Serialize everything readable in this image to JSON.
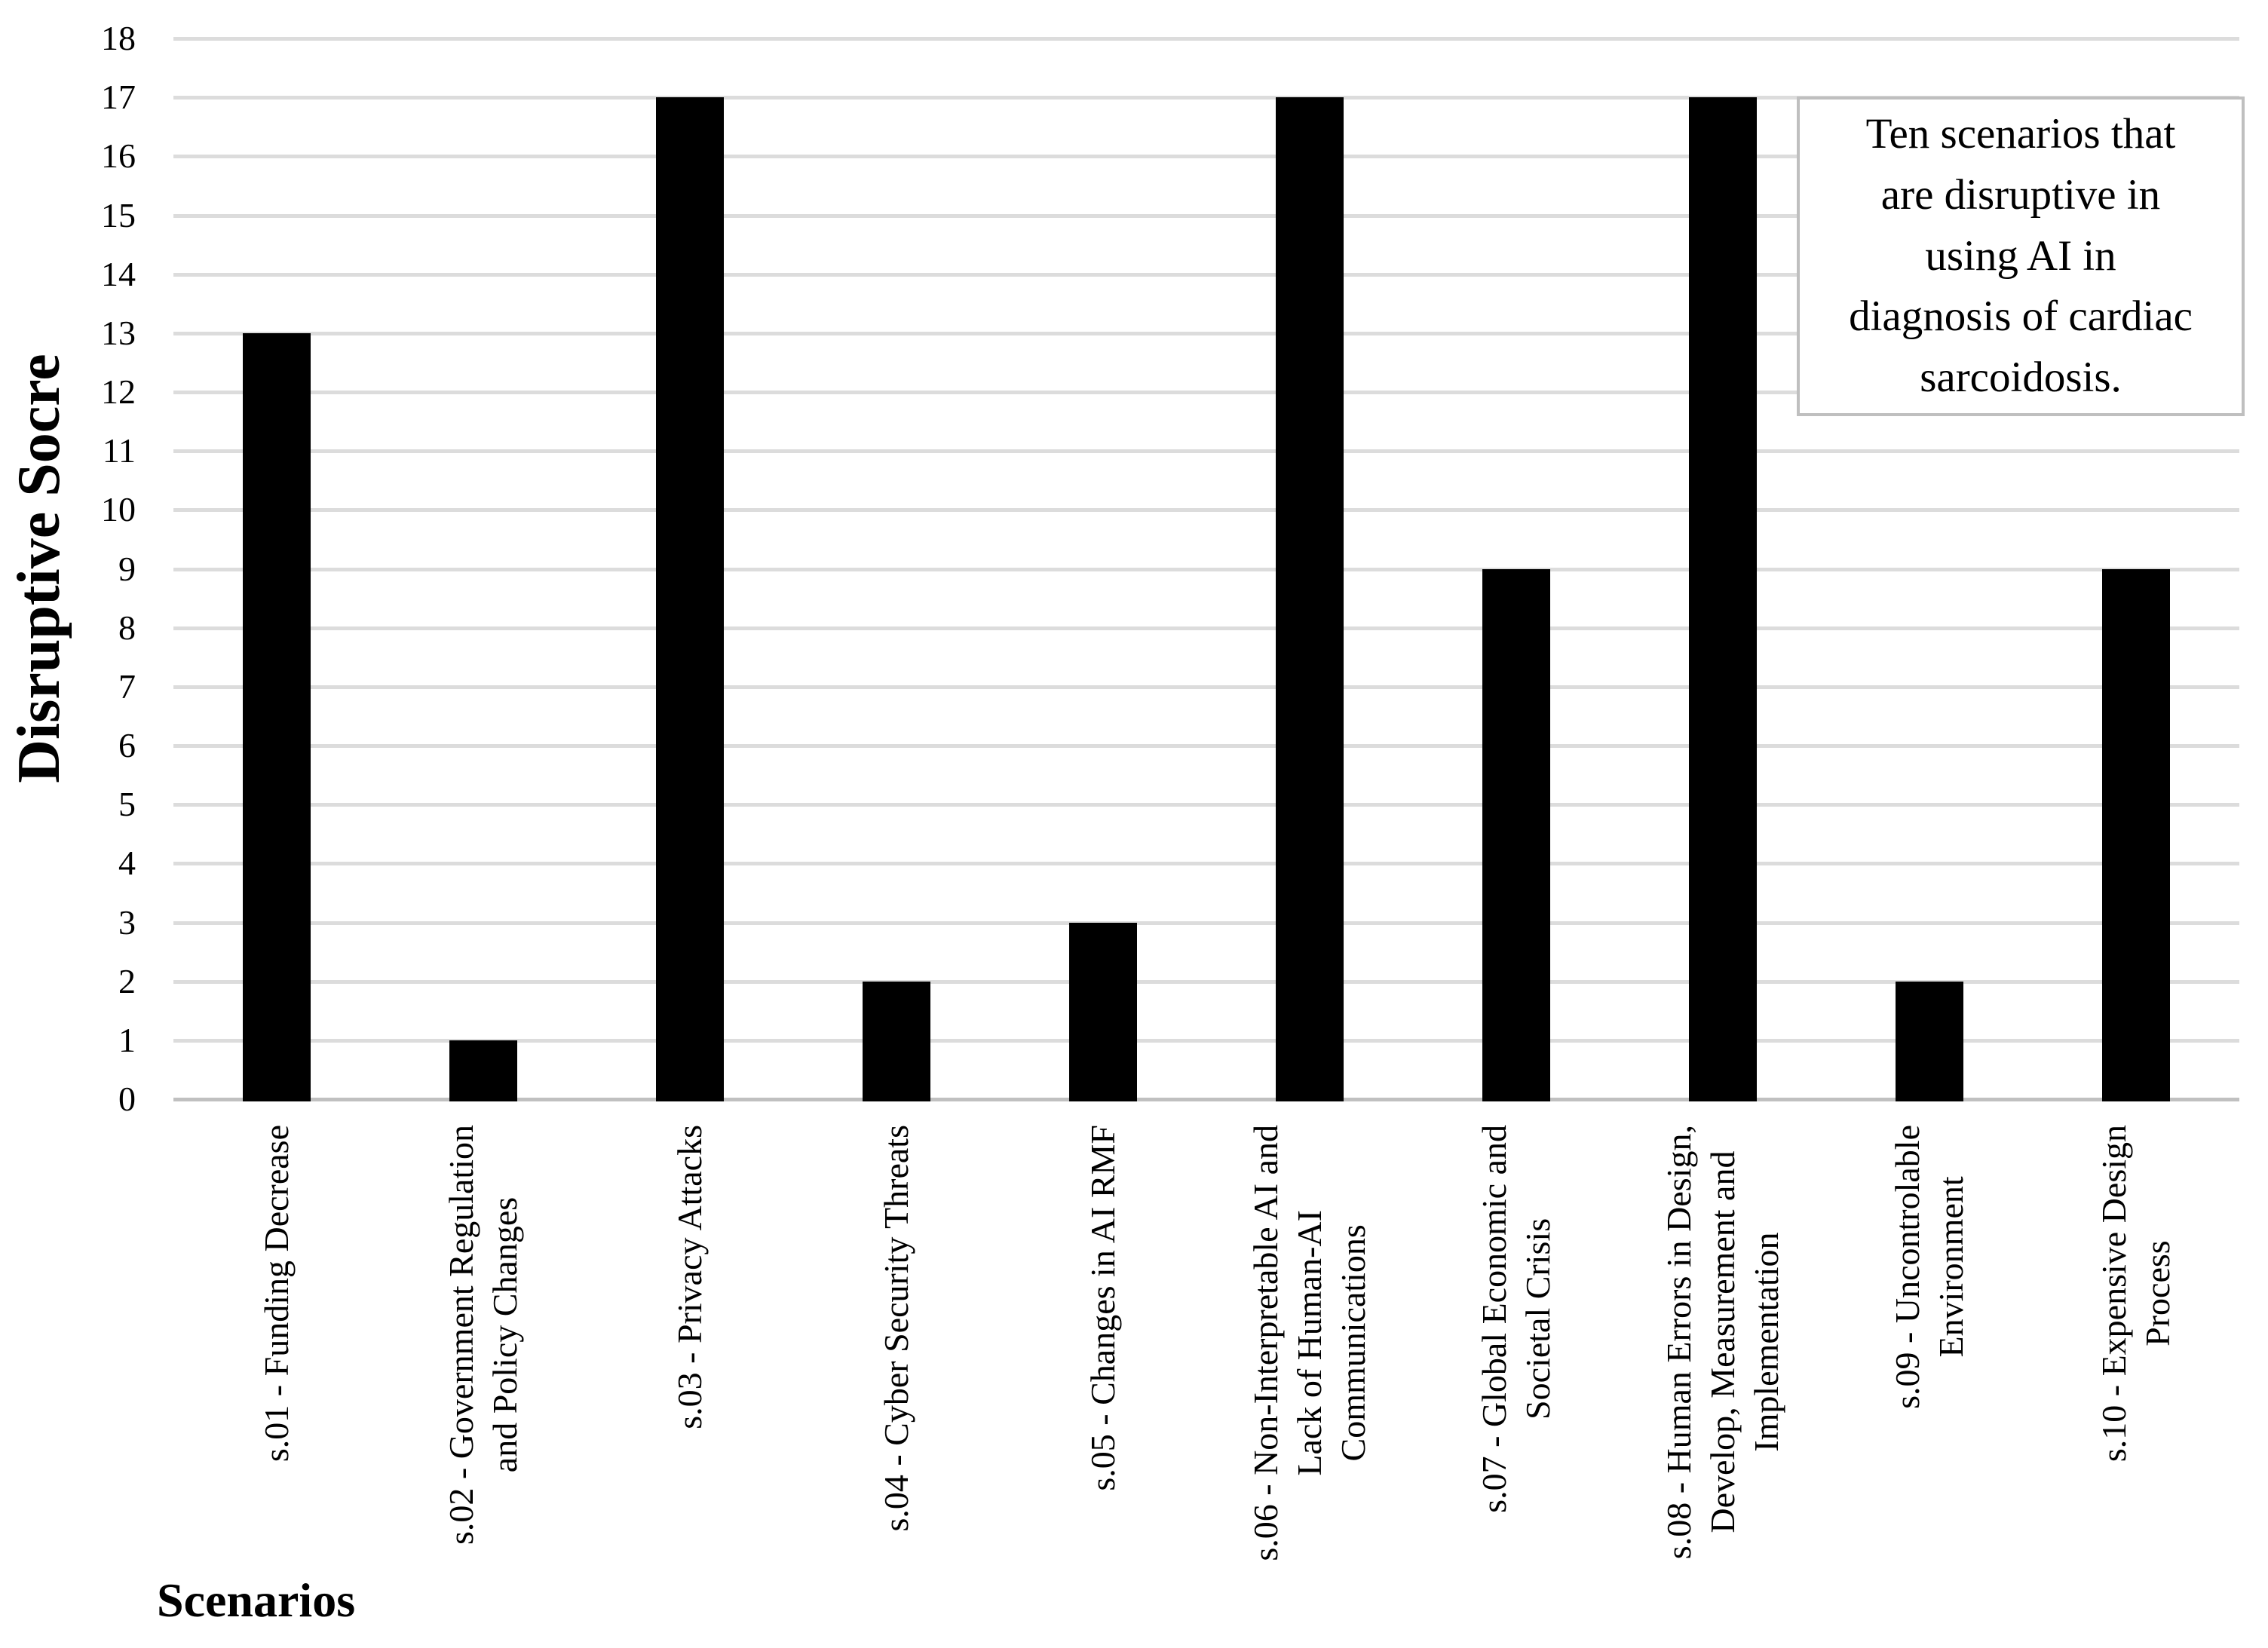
{
  "chart_data": {
    "type": "bar",
    "title": "",
    "xlabel": "Scenarios",
    "ylabel": "Disruptive Socre",
    "categories": [
      "s.01 - Funding Decrease",
      "s.02 - Government Regulation\nand Policy Changes",
      "s.03 - Privacy Attacks",
      "s.04 - Cyber Security Threats",
      "s.05 - Changes in AI RMF",
      "s.06 - Non-Interpretable AI and\nLack of Human-AI\nCommunications",
      "s.07 - Global Economic and\nSocietal Crisis",
      "s.08 - Human Errors in Design,\nDevelop, Measurement and\nImplementation",
      "s.09 - Uncontrolable\nEnvironment",
      "s.10 - Expensive Design\nProcess"
    ],
    "values": [
      13,
      1,
      17,
      2,
      3,
      17,
      9,
      17,
      2,
      9
    ],
    "ylim": [
      0,
      18
    ],
    "ytick_step": 1,
    "yticks": [
      "0",
      "1",
      "2",
      "3",
      "4",
      "5",
      "6",
      "7",
      "8",
      "9",
      "10",
      "11",
      "12",
      "13",
      "14",
      "15",
      "16",
      "17",
      "18"
    ],
    "grid": true,
    "legend_position": "none",
    "bar_color": "#000000",
    "gridline_color": "#dcdcdc",
    "axis_line_color": "#c0c0c0",
    "annotation": "Ten scenarios that\nare disruptive in\nusing AI in\ndiagnosis of cardiac\nsarcoidosis.",
    "annotation_border_color": "#bfbfbf"
  }
}
